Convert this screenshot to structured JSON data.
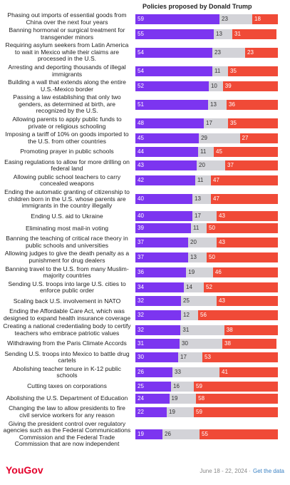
{
  "chart_data": {
    "type": "stacked-bar",
    "title": "Policies proposed by Donald Trump",
    "categories": [
      "Phasing out imports of essential goods from China over the next four years",
      "Banning hormonal or surgical treatment for transgender minors",
      "Requiring asylum seekers from Latin America to wait in Mexico while their claims are processed in the U.S.",
      "Arresting and deporting thousands of illegal immigrants",
      "Building a wall that extends along the entire U.S.-Mexico border",
      "Passing a law establishing that only two genders, as determined at birth, are recognized by the U.S.",
      "Allowing parents to apply public funds to private or religious schooling",
      "Imposing a tariff of 10% on goods imported to the U.S. from other countries",
      "Promoting prayer in public schools",
      "Easing regulations to allow for more drilling on federal land",
      "Allowing public school teachers to carry concealed weapons",
      "Ending the automatic granting of citizenship to children born in the U.S. whose parents are immigrants in the country illegally",
      "Ending U.S. aid to Ukraine",
      "Eliminating most mail-in voting",
      "Banning the teaching of critical race theory in public schools and universities",
      "Allowing judges to give the death penalty as a punishment for drug dealers",
      "Banning travel to the U.S. from many Muslim-majority countries",
      "Sending U.S. troops into large U.S. cities to enforce public order",
      "Scaling back U.S. involvement in NATO",
      "Ending the Affordable Care Act, which was designed to expand health insurance coverage",
      "Creating a national credentialing body to certify teachers who embrace patriotic values",
      "Withdrawing from the Paris Climate Accords",
      "Sending U.S. troops into Mexico to battle drug cartels",
      "Abolishing teacher tenure in K-12 public schools",
      "Cutting taxes on corporations",
      "Abolishing the U.S. Department of Education",
      "Changing the law to allow presidents to fire civil service workers for any reason",
      "Giving the president control over regulatory agencies such as the Federal Communications Commission and the Federal Trade Commission that are now independent"
    ],
    "series": [
      {
        "color": "#7c35f0",
        "values": [
          59,
          55,
          54,
          54,
          52,
          51,
          48,
          45,
          44,
          43,
          42,
          40,
          40,
          39,
          37,
          37,
          36,
          34,
          32,
          32,
          32,
          31,
          30,
          26,
          25,
          24,
          22,
          19
        ]
      },
      {
        "color": "#d3d3d8",
        "values": [
          23,
          13,
          23,
          11,
          10,
          13,
          17,
          29,
          11,
          20,
          11,
          13,
          17,
          11,
          20,
          13,
          19,
          14,
          25,
          12,
          31,
          30,
          17,
          33,
          16,
          19,
          19,
          26
        ]
      },
      {
        "color": "#f04a37",
        "values": [
          18,
          31,
          23,
          35,
          39,
          36,
          35,
          27,
          45,
          37,
          47,
          47,
          43,
          50,
          43,
          50,
          46,
          52,
          43,
          56,
          38,
          38,
          53,
          41,
          59,
          58,
          59,
          55
        ]
      }
    ],
    "xlim": [
      0,
      100
    ],
    "footer": {
      "brand": "YouGov",
      "date": "June 18 - 22, 2024 ·",
      "link": "Get the data"
    }
  }
}
